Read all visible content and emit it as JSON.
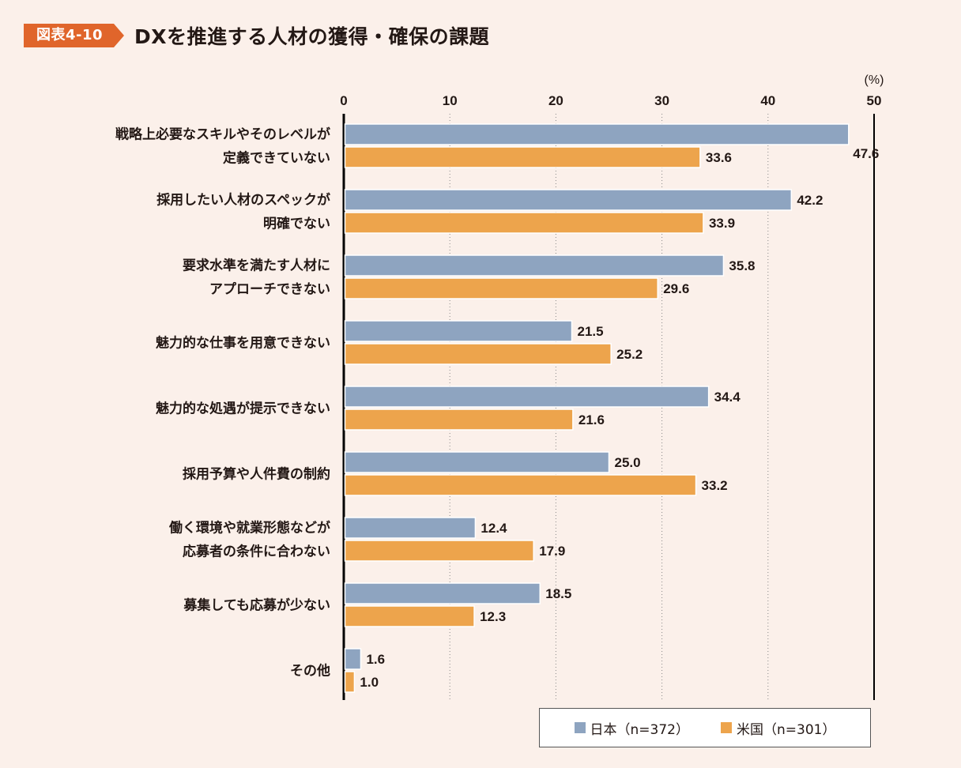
{
  "header": {
    "badge": "図表4-10",
    "title": "DXを推進する人材の獲得・確保の課題"
  },
  "chart_data": {
    "type": "bar",
    "orientation": "horizontal",
    "unit_label": "(%)",
    "xlim": [
      0,
      50
    ],
    "ticks": [
      0,
      10,
      20,
      30,
      40,
      50
    ],
    "categories": [
      [
        "戦略上必要なスキルやそのレベルが",
        "定義できていない"
      ],
      [
        "採用したい人材のスペックが",
        "明確でない"
      ],
      [
        "要求水準を満たす人材に",
        "アプローチできない"
      ],
      [
        "魅力的な仕事を用意できない"
      ],
      [
        "魅力的な処遇が提示できない"
      ],
      [
        "採用予算や人件費の制約"
      ],
      [
        "働く環境や就業形態などが",
        "応募者の条件に合わない"
      ],
      [
        "募集しても応募が少ない"
      ],
      [
        "その他"
      ]
    ],
    "series": [
      {
        "name": "日本（n=372）",
        "color": "#8ea4c0",
        "values": [
          47.6,
          42.2,
          35.8,
          21.5,
          34.4,
          25.0,
          12.4,
          18.5,
          1.6
        ]
      },
      {
        "name": "米国（n=301）",
        "color": "#eda44c",
        "values": [
          33.6,
          33.9,
          29.6,
          25.2,
          21.6,
          33.2,
          17.9,
          12.3,
          1.0
        ]
      }
    ],
    "legend_position": "bottom-right",
    "grid": "dotted-vertical"
  }
}
